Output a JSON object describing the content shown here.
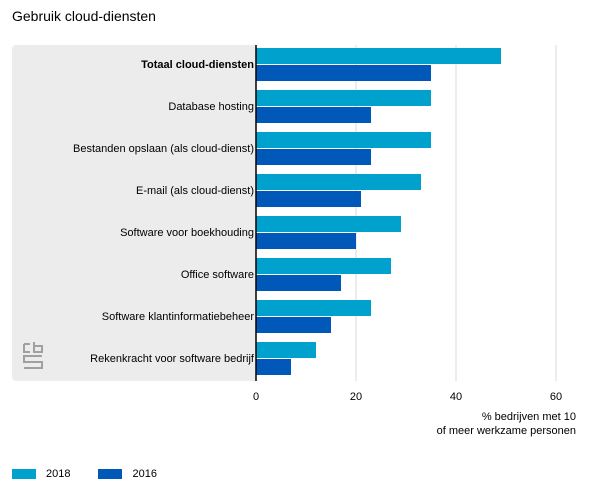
{
  "title": "Gebruik cloud-diensten",
  "chart_data": {
    "type": "bar",
    "orientation": "horizontal",
    "categories": [
      "Totaal cloud-diensten",
      "Database hosting",
      "Bestanden opslaan (als cloud-dienst)",
      "E-mail (als cloud-dienst)",
      "Software voor boekhouding",
      "Office software",
      "Software klantinformatiebeheer",
      "Rekenkracht voor software bedrijf"
    ],
    "series": [
      {
        "name": "2018",
        "color": "#00a1cd",
        "values": [
          49,
          35,
          35,
          33,
          29,
          27,
          23,
          12
        ]
      },
      {
        "name": "2016",
        "color": "#0058b8",
        "values": [
          35,
          23,
          23,
          21,
          20,
          17,
          15,
          7
        ]
      }
    ],
    "xlim": [
      0,
      60
    ],
    "xticks": [
      "0",
      "20",
      "40",
      "60"
    ],
    "xlabel": "% bedrijven met 10\nof meer werkzame personen",
    "grid": true,
    "legend_position": "bottom-left"
  }
}
